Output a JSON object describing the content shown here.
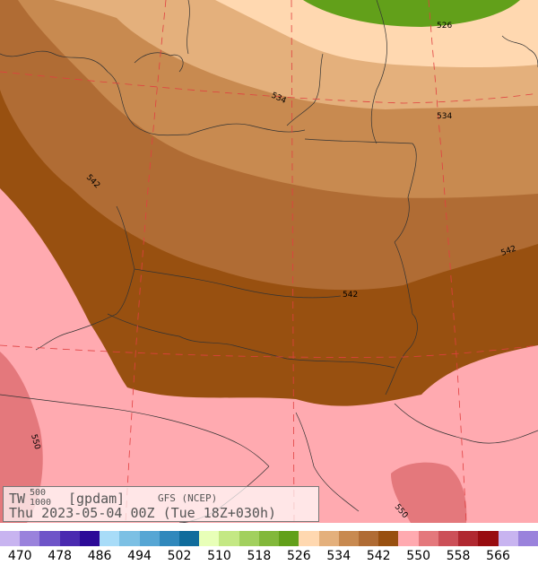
{
  "header": {
    "param": "TW",
    "sup": "500",
    "sub": "1000",
    "unit": "[gpdam]",
    "model": "GFS (NCEP)",
    "valid": "Thu 2023-05-04 00Z (Tue 18Z+030h)"
  },
  "contours": [
    "526",
    "534",
    "534",
    "542",
    "542",
    "542",
    "550",
    "550"
  ],
  "legend": {
    "colors": [
      "#c8b4f0",
      "#9a82dc",
      "#6e54c8",
      "#4a2ab0",
      "#2c0a98",
      "#a8dcf8",
      "#7cc0e4",
      "#56a6d4",
      "#3088bc",
      "#106c9c",
      "#e8ffb8",
      "#c4e884",
      "#a2d05e",
      "#82b83a",
      "#62a01a",
      "#ffd8b0",
      "#e4b07c",
      "#c88a50",
      "#b06c34",
      "#985010",
      "#ffaab0",
      "#e4787c",
      "#cc5058",
      "#b02830",
      "#980c10",
      "#c8b4f0",
      "#9a82dc"
    ],
    "ticks": [
      "470",
      "478",
      "486",
      "494",
      "502",
      "510",
      "518",
      "526",
      "534",
      "542",
      "550",
      "558",
      "566"
    ]
  }
}
